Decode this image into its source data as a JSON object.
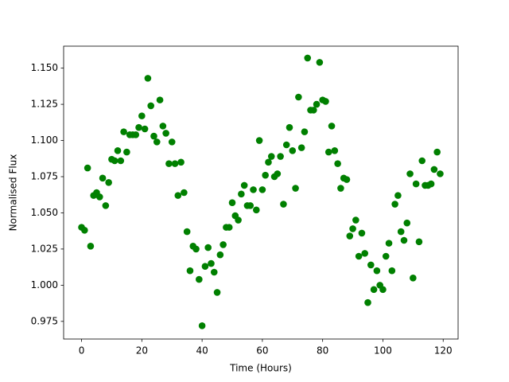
{
  "chart_data": {
    "type": "scatter",
    "x_label": "Time (Hours)",
    "y_label": "Normalised Flux",
    "color": "#008000",
    "x": [
      0,
      1,
      2,
      3,
      4,
      5,
      6,
      7,
      8,
      9,
      10,
      11,
      12,
      13,
      14,
      15,
      16,
      17,
      18,
      19,
      20,
      21,
      22,
      23,
      24,
      25,
      26,
      27,
      28,
      29,
      30,
      31,
      32,
      33,
      34,
      35,
      36,
      37,
      38,
      39,
      40,
      41,
      42,
      43,
      44,
      45,
      46,
      47,
      48,
      49,
      50,
      51,
      52,
      53,
      54,
      55,
      56,
      57,
      58,
      59,
      60,
      61,
      62,
      63,
      64,
      65,
      66,
      67,
      68,
      69,
      70,
      71,
      72,
      73,
      74,
      75,
      76,
      77,
      78,
      79,
      80,
      81,
      82,
      83,
      84,
      85,
      86,
      87,
      88,
      89,
      90,
      91,
      92,
      93,
      94,
      95,
      96,
      97,
      98,
      99,
      100,
      101,
      102,
      103,
      104,
      105,
      106,
      107,
      108,
      109,
      110,
      111,
      112,
      113,
      114,
      115,
      116,
      117,
      118,
      119
    ],
    "values": [
      1.04,
      1.038,
      1.081,
      1.027,
      1.062,
      1.064,
      1.061,
      1.074,
      1.055,
      1.071,
      1.087,
      1.086,
      1.093,
      1.086,
      1.106,
      1.092,
      1.104,
      1.104,
      1.104,
      1.109,
      1.117,
      1.108,
      1.143,
      1.124,
      1.103,
      1.099,
      1.128,
      1.11,
      1.105,
      1.084,
      1.099,
      1.084,
      1.062,
      1.085,
      1.064,
      1.037,
      1.01,
      1.027,
      1.025,
      1.004,
      0.972,
      1.013,
      1.026,
      1.015,
      1.009,
      0.995,
      1.021,
      1.028,
      1.04,
      1.04,
      1.057,
      1.048,
      1.045,
      1.063,
      1.069,
      1.055,
      1.055,
      1.066,
      1.052,
      1.1,
      1.066,
      1.076,
      1.085,
      1.089,
      1.075,
      1.077,
      1.089,
      1.056,
      1.097,
      1.109,
      1.093,
      1.067,
      1.13,
      1.095,
      1.106,
      1.157,
      1.121,
      1.121,
      1.125,
      1.154,
      1.128,
      1.127,
      1.092,
      1.11,
      1.093,
      1.084,
      1.067,
      1.074,
      1.073,
      1.034,
      1.039,
      1.045,
      1.02,
      1.036,
      1.022,
      0.988,
      1.014,
      0.997,
      1.01,
      1.0,
      0.997,
      1.02,
      1.029,
      1.01,
      1.056,
      1.062,
      1.037,
      1.031,
      1.043,
      1.077,
      1.005,
      1.07,
      1.03,
      1.086,
      1.069,
      1.069,
      1.07,
      1.08,
      1.092,
      1.077
    ],
    "xlim": [
      -5.95,
      124.95
    ],
    "ylim": [
      0.9628,
      1.1652
    ],
    "xticks": [
      0,
      20,
      40,
      60,
      80,
      100,
      120
    ],
    "yticks": [
      {
        "value": 0.975,
        "label": "0.975"
      },
      {
        "value": 1.0,
        "label": "1.000"
      },
      {
        "value": 1.025,
        "label": "1.025"
      },
      {
        "value": 1.05,
        "label": "1.050"
      },
      {
        "value": 1.075,
        "label": "1.075"
      },
      {
        "value": 1.1,
        "label": "1.100"
      },
      {
        "value": 1.125,
        "label": "1.125"
      },
      {
        "value": 1.15,
        "label": "1.150"
      }
    ]
  }
}
